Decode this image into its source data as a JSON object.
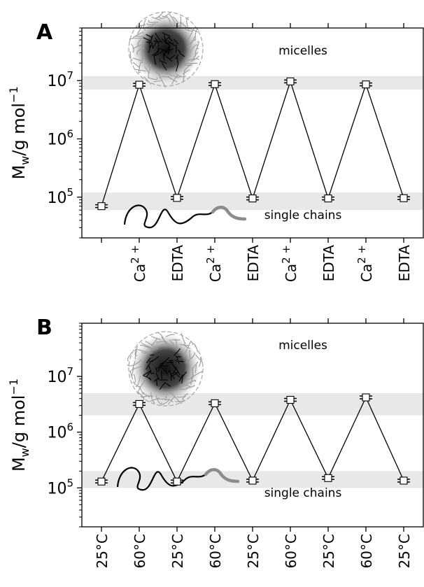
{
  "chart_data": [
    {
      "panel": "A",
      "type": "line",
      "y_scale": "log",
      "ylim": [
        20000,
        80000000
      ],
      "ylabel_main": "M",
      "ylabel_sub": "w",
      "ylabel_units": "/g mol",
      "ylabel_exp": "−1",
      "yticks": [
        {
          "value": 100000,
          "base": "10",
          "exp": "5"
        },
        {
          "value": 1000000,
          "base": "10",
          "exp": "6"
        },
        {
          "value": 10000000,
          "base": "10",
          "exp": "7"
        }
      ],
      "categories": [
        {
          "label": "",
          "sup": ""
        },
        {
          "label": "Ca",
          "sup": "2 +"
        },
        {
          "label": "EDTA",
          "sup": ""
        },
        {
          "label": "Ca",
          "sup": "2 +"
        },
        {
          "label": "EDTA",
          "sup": ""
        },
        {
          "label": "Ca",
          "sup": "2 +"
        },
        {
          "label": "EDTA",
          "sup": ""
        },
        {
          "label": "Ca",
          "sup": "2 +"
        },
        {
          "label": "EDTA",
          "sup": ""
        }
      ],
      "values": [
        70000,
        8500000,
        97000,
        8700000,
        95000,
        9700000,
        95000,
        8600000,
        96000
      ],
      "bands": [
        [
          60000,
          120000
        ],
        [
          7000000,
          12000000
        ]
      ],
      "annotations": {
        "top": "micelles",
        "bottom": "single chains"
      },
      "grid": false
    },
    {
      "panel": "B",
      "type": "line",
      "y_scale": "log",
      "ylim": [
        20000,
        90000000
      ],
      "ylabel_main": "M",
      "ylabel_sub": "w",
      "ylabel_units": "/g mol",
      "ylabel_exp": "−1",
      "yticks": [
        {
          "value": 100000,
          "base": "10",
          "exp": "5"
        },
        {
          "value": 1000000,
          "base": "10",
          "exp": "6"
        },
        {
          "value": 10000000,
          "base": "10",
          "exp": "7"
        }
      ],
      "categories": [
        {
          "label": "25°C",
          "sup": ""
        },
        {
          "label": "60°C",
          "sup": ""
        },
        {
          "label": "25°C",
          "sup": ""
        },
        {
          "label": "60°C",
          "sup": ""
        },
        {
          "label": "25°C",
          "sup": ""
        },
        {
          "label": "60°C",
          "sup": ""
        },
        {
          "label": "25°C",
          "sup": ""
        },
        {
          "label": "60°C",
          "sup": ""
        },
        {
          "label": "25°C",
          "sup": ""
        }
      ],
      "values": [
        130000,
        3200000,
        130000,
        3300000,
        135000,
        3800000,
        150000,
        4200000,
        135000
      ],
      "bands": [
        [
          100000,
          200000
        ],
        [
          2000000,
          5000000
        ]
      ],
      "annotations": {
        "top": "micelles",
        "bottom": "single chains"
      },
      "grid": false
    }
  ]
}
